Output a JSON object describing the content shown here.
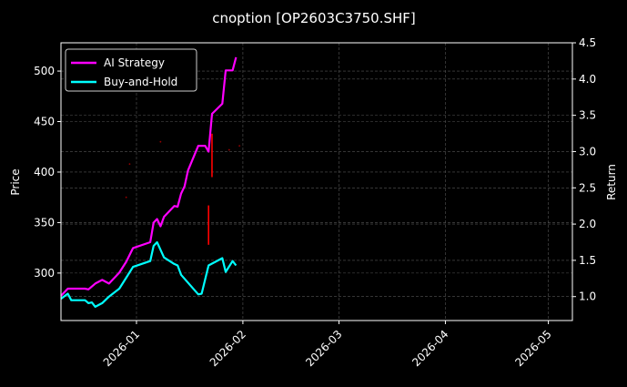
{
  "chart_data": {
    "type": "line",
    "title": "cnoption [OP2603C3750.SHF]",
    "ylabel_left": "Price",
    "ylabel_right": "Return",
    "ylim_left": [
      253,
      528
    ],
    "ylim_right": [
      0.67,
      4.5
    ],
    "xlim": [
      "2025-12-10",
      "2026-05-08"
    ],
    "left_ticks": [
      300,
      350,
      400,
      450,
      500
    ],
    "right_ticks": [
      1.0,
      1.5,
      2.0,
      2.5,
      3.0,
      3.5,
      4.0,
      4.5
    ],
    "x_ticks": [
      "2026-01",
      "2026-02",
      "2026-03",
      "2026-04",
      "2026-05"
    ],
    "x_tick_dates": [
      "2026-01-01",
      "2026-02-01",
      "2026-03-01",
      "2026-04-01",
      "2026-05-01"
    ],
    "grid": true,
    "legend_position": "top-left",
    "series": [
      {
        "name": "AI Strategy",
        "color": "#ff00ff",
        "axis": "right",
        "points": [
          [
            "2025-12-10",
            1.01
          ],
          [
            "2025-12-12",
            1.11
          ],
          [
            "2025-12-17",
            1.11
          ],
          [
            "2025-12-18",
            1.1
          ],
          [
            "2025-12-20",
            1.18
          ],
          [
            "2025-12-22",
            1.23
          ],
          [
            "2025-12-24",
            1.18
          ],
          [
            "2025-12-27",
            1.33
          ],
          [
            "2025-12-29",
            1.48
          ],
          [
            "2025-12-31",
            1.67
          ],
          [
            "2026-01-05",
            1.75
          ],
          [
            "2026-01-06",
            2.02
          ],
          [
            "2026-01-07",
            2.07
          ],
          [
            "2026-01-08",
            1.97
          ],
          [
            "2026-01-09",
            2.1
          ],
          [
            "2026-01-12",
            2.25
          ],
          [
            "2026-01-13",
            2.24
          ],
          [
            "2026-01-14",
            2.42
          ],
          [
            "2026-01-15",
            2.52
          ],
          [
            "2026-01-16",
            2.74
          ],
          [
            "2026-01-19",
            3.08
          ],
          [
            "2026-01-21",
            3.08
          ],
          [
            "2026-01-22",
            3.0
          ],
          [
            "2026-01-23",
            3.52
          ],
          [
            "2026-01-26",
            3.66
          ],
          [
            "2026-01-27",
            4.12
          ],
          [
            "2026-01-29",
            4.12
          ],
          [
            "2026-01-30",
            4.3
          ]
        ]
      },
      {
        "name": "Buy-and-Hold",
        "color": "#00ffff",
        "axis": "right",
        "points": [
          [
            "2025-12-10",
            0.97
          ],
          [
            "2025-12-12",
            1.04
          ],
          [
            "2025-12-13",
            0.95
          ],
          [
            "2025-12-17",
            0.95
          ],
          [
            "2025-12-18",
            0.91
          ],
          [
            "2025-12-19",
            0.92
          ],
          [
            "2025-12-20",
            0.86
          ],
          [
            "2025-12-22",
            0.91
          ],
          [
            "2025-12-24",
            1.0
          ],
          [
            "2025-12-27",
            1.11
          ],
          [
            "2025-12-29",
            1.26
          ],
          [
            "2025-12-31",
            1.41
          ],
          [
            "2026-01-05",
            1.49
          ],
          [
            "2026-01-06",
            1.7
          ],
          [
            "2026-01-07",
            1.75
          ],
          [
            "2026-01-09",
            1.54
          ],
          [
            "2026-01-12",
            1.45
          ],
          [
            "2026-01-13",
            1.43
          ],
          [
            "2026-01-14",
            1.3
          ],
          [
            "2026-01-19",
            1.03
          ],
          [
            "2026-01-20",
            1.04
          ],
          [
            "2026-01-22",
            1.43
          ],
          [
            "2026-01-26",
            1.53
          ],
          [
            "2026-01-27",
            1.34
          ],
          [
            "2026-01-29",
            1.49
          ],
          [
            "2026-01-30",
            1.43
          ]
        ]
      }
    ],
    "price_marks": {
      "color": "#ff0000",
      "axis": "left",
      "bars": [
        [
          "2026-01-22",
          328,
          367
        ],
        [
          "2026-01-23",
          395,
          438
        ]
      ],
      "dots": [
        [
          "2025-12-29",
          375
        ],
        [
          "2025-12-30",
          408
        ],
        [
          "2026-01-08",
          430
        ],
        [
          "2026-01-20",
          299
        ],
        [
          "2026-01-28",
          422
        ],
        [
          "2026-01-31",
          426
        ]
      ]
    }
  }
}
